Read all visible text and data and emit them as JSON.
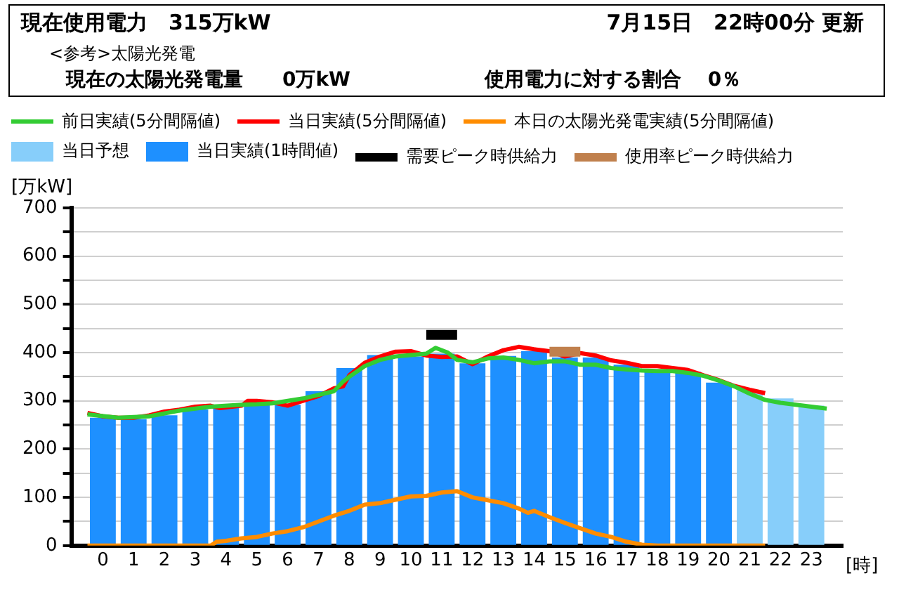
{
  "chart_data": {
    "type": "bar",
    "title": "現在使用電力　315万kW",
    "annotations": [
      "7月15日　22時00分 更新",
      "<参考>太陽光発電",
      "現在の太陽光発電量　　0万kW",
      "使用電力に対する割合　 0％"
    ],
    "xlabel": "[時]",
    "ylabel": "[万kW]",
    "x": [
      0.5,
      1.5,
      2.5,
      3.5,
      4.5,
      5.5,
      6.5,
      7.5,
      8.5,
      9.5,
      10.5,
      11.5,
      12.5,
      13.5,
      14.5,
      15.5,
      16.5,
      17.5,
      18.5,
      19.5,
      20.5,
      21.5,
      22.5,
      23.5
    ],
    "xlim": [
      0,
      24
    ],
    "xticks": [
      {
        "value": 0.5,
        "label": "0"
      },
      {
        "value": 1.5,
        "label": "1"
      },
      {
        "value": 2.5,
        "label": "2"
      },
      {
        "value": 3.5,
        "label": "3"
      },
      {
        "value": 4.5,
        "label": "4"
      },
      {
        "value": 5.5,
        "label": "5"
      },
      {
        "value": 6.5,
        "label": "6"
      },
      {
        "value": 7.5,
        "label": "7"
      },
      {
        "value": 8.5,
        "label": "8"
      },
      {
        "value": 9.5,
        "label": "9"
      },
      {
        "value": 10.5,
        "label": "10"
      },
      {
        "value": 11.5,
        "label": "11"
      },
      {
        "value": 12.5,
        "label": "12"
      },
      {
        "value": 13.5,
        "label": "13"
      },
      {
        "value": 14.5,
        "label": "14"
      },
      {
        "value": 15.5,
        "label": "15"
      },
      {
        "value": 16.5,
        "label": "16"
      },
      {
        "value": 17.5,
        "label": "17"
      },
      {
        "value": 18.5,
        "label": "18"
      },
      {
        "value": 19.5,
        "label": "19"
      },
      {
        "value": 20.5,
        "label": "20"
      },
      {
        "value": 21.5,
        "label": "21"
      },
      {
        "value": 22.5,
        "label": "22"
      },
      {
        "value": 23.5,
        "label": "23"
      }
    ],
    "ylim": [
      0,
      700
    ],
    "yticks": [
      0,
      {
        "value": 50,
        "label": null
      },
      100,
      {
        "value": 150,
        "label": null
      },
      200,
      {
        "value": 250,
        "label": null
      },
      300,
      {
        "value": 350,
        "label": null
      },
      400,
      {
        "value": 450,
        "label": null
      },
      500,
      {
        "value": 550,
        "label": null
      },
      600,
      {
        "value": 650,
        "label": null
      },
      700
    ],
    "grid": "y",
    "legend": "top",
    "series": [
      {
        "name": "前日実績(5分間隔値)",
        "type": "line",
        "color": "#33cc33",
        "x": [
          0,
          1,
          2,
          3,
          4,
          5,
          5.5,
          6,
          7,
          8,
          8.3,
          8.5,
          9,
          9.5,
          10,
          11,
          11.3,
          11.7,
          12,
          12.5,
          13,
          13.5,
          14,
          14.5,
          15,
          15.5,
          16,
          16.5,
          17,
          17.5,
          18,
          18.5,
          19,
          19.5,
          20,
          20.5,
          21,
          21.5,
          22,
          22.5,
          23,
          23.5,
          24
        ],
        "values": [
          272,
          265,
          268,
          280,
          288,
          292,
          293,
          295,
          305,
          320,
          340,
          350,
          372,
          385,
          392,
          398,
          410,
          400,
          385,
          380,
          388,
          390,
          385,
          378,
          382,
          382,
          375,
          375,
          368,
          365,
          363,
          362,
          362,
          358,
          352,
          342,
          330,
          315,
          302,
          296,
          292,
          288,
          284
        ]
      },
      {
        "name": "当日実績(5分間隔値)",
        "type": "line",
        "color": "#ff0000",
        "x": [
          0,
          0.5,
          1,
          1.5,
          2,
          2.5,
          3,
          3.5,
          4,
          4.3,
          5,
          5.2,
          5.5,
          6,
          6.5,
          7,
          7.5,
          8,
          8.3,
          8.5,
          9,
          9.5,
          10,
          10.5,
          11,
          11.5,
          12,
          12.5,
          13,
          13.5,
          14,
          14.5,
          15,
          15.5,
          16,
          16.5,
          17,
          17.5,
          18,
          18.5,
          19,
          19.5,
          20,
          20.5,
          21,
          21.5,
          22
        ],
        "values": [
          275,
          268,
          265,
          265,
          270,
          278,
          282,
          288,
          290,
          285,
          290,
          300,
          300,
          297,
          290,
          300,
          310,
          326,
          330,
          353,
          379,
          392,
          402,
          403,
          394,
          391,
          392,
          376,
          392,
          405,
          412,
          407,
          403,
          392,
          399,
          394,
          384,
          379,
          372,
          372,
          368,
          364,
          353,
          343,
          331,
          323,
          316
        ]
      },
      {
        "name": "本日の太陽光発電実績(5分間隔値)",
        "type": "line",
        "color": "#ff8c00",
        "x": [
          0,
          4,
          4.2,
          4.5,
          5,
          5.5,
          6,
          6.5,
          7,
          7.5,
          8,
          8.5,
          9,
          9.5,
          10,
          10.5,
          11,
          11.5,
          12,
          12.5,
          13,
          13.5,
          14,
          14.3,
          14.5,
          15,
          15.5,
          16,
          16.5,
          17,
          17.5,
          18,
          18.5,
          22
        ],
        "values": [
          0,
          0,
          8,
          10,
          15,
          18,
          25,
          30,
          38,
          50,
          62,
          72,
          85,
          88,
          95,
          102,
          103,
          110,
          113,
          100,
          94,
          88,
          77,
          68,
          72,
          59,
          47,
          36,
          25,
          18,
          8,
          2,
          0,
          0
        ]
      },
      {
        "name": "当日予想",
        "color": "#87cefa",
        "values": [
          null,
          null,
          null,
          null,
          null,
          null,
          null,
          null,
          null,
          null,
          null,
          null,
          null,
          null,
          null,
          null,
          null,
          null,
          null,
          null,
          null,
          322,
          305,
          290
        ]
      },
      {
        "name": "当日実績(1時間値)",
        "color": "#1e90ff",
        "values": [
          265,
          262,
          270,
          282,
          287,
          295,
          292,
          320,
          368,
          395,
          392,
          398,
          378,
          393,
          403,
          390,
          390,
          375,
          363,
          360,
          338,
          null,
          null,
          null
        ]
      },
      {
        "name": "需要ピーク時供給力",
        "type": "line",
        "color": "#000000",
        "x": [
          11,
          12
        ],
        "values": [
          437,
          437
        ]
      },
      {
        "name": "使用率ピーク時供給力",
        "type": "line",
        "color": "#c0804d",
        "x": [
          15,
          16
        ],
        "values": [
          402,
          402
        ]
      }
    ]
  }
}
